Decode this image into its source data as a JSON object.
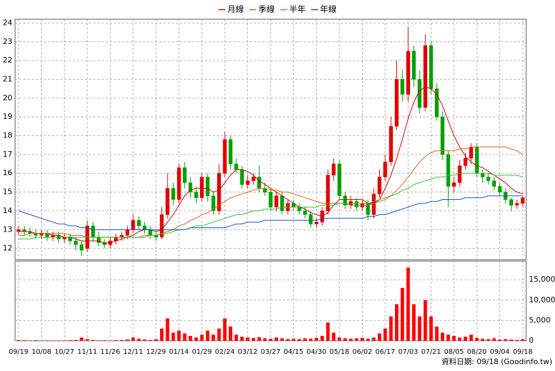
{
  "chart_data": {
    "type": "candlestick",
    "legend": "top",
    "grid": true,
    "up_color": "#e00000",
    "down_color": "#00a000",
    "volume_color": "#ff0000",
    "note": "資料日期: 09/18 (Goodinfo.tw)",
    "xlim": [
      -0.6,
      88.6
    ],
    "xticks": [
      {
        "value": 0,
        "label": "09/19"
      },
      {
        "value": 4,
        "label": "10/08"
      },
      {
        "value": 8,
        "label": "10/27"
      },
      {
        "value": 12,
        "label": "11/11"
      },
      {
        "value": 16,
        "label": "11/26"
      },
      {
        "value": 20,
        "label": "12/11"
      },
      {
        "value": 24,
        "label": "12/29"
      },
      {
        "value": 28,
        "label": "01/14"
      },
      {
        "value": 32,
        "label": "01/29"
      },
      {
        "value": 36,
        "label": "02/24"
      },
      {
        "value": 40,
        "label": "03/12"
      },
      {
        "value": 44,
        "label": "03/27"
      },
      {
        "value": 48,
        "label": "04/15"
      },
      {
        "value": 52,
        "label": "04/30"
      },
      {
        "value": 56,
        "label": "05/18"
      },
      {
        "value": 60,
        "label": "06/02"
      },
      {
        "value": 64,
        "label": "06/17"
      },
      {
        "value": 68,
        "label": "07/03"
      },
      {
        "value": 72,
        "label": "07/21"
      },
      {
        "value": 76,
        "label": "08/05"
      },
      {
        "value": 80,
        "label": "08/20"
      },
      {
        "value": 84,
        "label": "09/04"
      },
      {
        "value": 88,
        "label": "09/18"
      }
    ],
    "ylim": [
      11.4,
      24.2
    ],
    "yticks": [
      12,
      13,
      14,
      15,
      16,
      17,
      18,
      19,
      20,
      21,
      22,
      23,
      24
    ],
    "y2lim": [
      0,
      19600
    ],
    "y2ticks": [
      0,
      {
        "value": 5000,
        "label": "5,000"
      },
      {
        "value": 10000,
        "label": "10,000"
      },
      {
        "value": 15000,
        "label": "15,000"
      }
    ],
    "open": [
      12.9,
      13.0,
      12.9,
      12.8,
      12.7,
      12.8,
      12.6,
      12.7,
      12.5,
      12.6,
      12.4,
      12.2,
      12.0,
      13.2,
      12.6,
      12.3,
      12.2,
      12.4,
      12.6,
      12.7,
      13.0,
      13.5,
      13.2,
      13.0,
      12.7,
      12.6,
      13.8,
      15.2,
      14.6,
      16.3,
      15.5,
      15.0,
      14.7,
      15.8,
      14.8,
      14.0,
      16.0,
      17.8,
      16.5,
      16.2,
      15.4,
      15.6,
      15.8,
      15.2,
      15.0,
      14.2,
      14.8,
      14.0,
      14.4,
      14.2,
      14.0,
      13.8,
      13.3,
      13.4,
      14.0,
      15.9,
      16.5,
      14.8,
      14.3,
      14.5,
      14.2,
      14.4,
      13.8,
      14.9,
      15.8,
      16.6,
      18.5,
      21.0,
      20.2,
      22.5,
      21.0,
      19.5,
      22.8,
      20.5,
      19.0,
      17.0,
      15.3,
      15.5,
      16.4,
      16.8,
      17.4,
      16.0,
      15.8,
      15.6,
      15.3,
      15.0,
      14.6,
      14.3,
      14.4
    ],
    "high": [
      13.2,
      13.2,
      13.1,
      13.0,
      13.0,
      13.0,
      12.9,
      12.9,
      12.8,
      12.8,
      12.6,
      12.4,
      13.5,
      13.4,
      12.9,
      12.5,
      12.6,
      12.8,
      12.9,
      13.2,
      13.8,
      13.7,
      13.4,
      13.2,
      12.9,
      14.2,
      16.0,
      15.5,
      16.5,
      16.6,
      15.8,
      15.3,
      16.0,
      16.0,
      15.0,
      16.5,
      18.2,
      18.0,
      16.8,
      16.4,
      15.9,
      16.0,
      16.4,
      15.5,
      15.2,
      15.0,
      15.0,
      14.6,
      14.6,
      14.4,
      14.2,
      14.0,
      13.6,
      14.2,
      16.2,
      16.8,
      16.7,
      15.0,
      14.8,
      14.7,
      14.6,
      14.6,
      15.2,
      16.2,
      17.0,
      19.0,
      22.0,
      21.5,
      23.8,
      22.8,
      21.5,
      23.4,
      23.0,
      20.8,
      19.3,
      17.2,
      15.8,
      16.7,
      17.1,
      17.6,
      17.6,
      16.2,
      16.0,
      15.8,
      15.5,
      15.2,
      14.7,
      14.6,
      14.8
    ],
    "low": [
      12.7,
      12.7,
      12.6,
      12.5,
      12.5,
      12.4,
      12.4,
      12.3,
      12.3,
      12.2,
      11.9,
      11.6,
      11.8,
      12.4,
      12.1,
      12.0,
      12.0,
      12.2,
      12.4,
      12.5,
      12.8,
      13.0,
      12.8,
      12.5,
      12.4,
      12.5,
      13.6,
      14.3,
      14.4,
      15.2,
      14.7,
      14.4,
      14.5,
      14.5,
      13.8,
      13.8,
      15.8,
      16.2,
      16.0,
      15.2,
      15.2,
      15.4,
      15.0,
      14.8,
      14.0,
      14.0,
      13.8,
      13.8,
      14.0,
      13.8,
      13.6,
      13.1,
      13.1,
      13.2,
      13.8,
      15.6,
      14.6,
      14.1,
      14.1,
      14.0,
      14.0,
      13.5,
      13.6,
      14.7,
      15.6,
      16.4,
      18.3,
      19.8,
      19.8,
      20.6,
      19.2,
      19.3,
      20.2,
      18.8,
      16.7,
      14.2,
      15.0,
      15.3,
      16.2,
      16.5,
      15.8,
      15.5,
      15.4,
      15.1,
      14.8,
      14.4,
      14.0,
      14.1,
      14.2
    ],
    "close": [
      13.0,
      12.9,
      12.8,
      12.7,
      12.8,
      12.6,
      12.7,
      12.5,
      12.6,
      12.4,
      12.2,
      11.9,
      13.2,
      12.6,
      12.3,
      12.2,
      12.4,
      12.6,
      12.7,
      13.0,
      13.5,
      13.2,
      13.0,
      12.7,
      12.6,
      13.8,
      15.2,
      14.6,
      16.3,
      15.5,
      15.0,
      14.7,
      15.8,
      14.8,
      14.0,
      16.0,
      17.8,
      16.5,
      16.2,
      15.4,
      15.6,
      15.8,
      15.2,
      15.0,
      14.2,
      14.8,
      14.0,
      14.4,
      14.2,
      14.0,
      13.8,
      13.3,
      13.4,
      14.0,
      15.9,
      16.5,
      14.8,
      14.3,
      14.5,
      14.2,
      14.4,
      13.8,
      14.9,
      15.8,
      16.6,
      18.5,
      21.0,
      20.2,
      22.5,
      21.0,
      19.5,
      22.8,
      20.5,
      19.0,
      17.0,
      15.3,
      15.5,
      16.4,
      16.8,
      17.4,
      16.0,
      15.8,
      15.6,
      15.3,
      15.0,
      14.6,
      14.3,
      14.4,
      14.7
    ],
    "volume": [
      200,
      150,
      100,
      150,
      100,
      120,
      80,
      100,
      100,
      150,
      200,
      800,
      400,
      200,
      100,
      150,
      100,
      150,
      200,
      300,
      800,
      500,
      300,
      200,
      400,
      3000,
      5500,
      2000,
      2500,
      1800,
      1200,
      800,
      1500,
      2500,
      1500,
      3000,
      5500,
      3500,
      1500,
      1000,
      800,
      700,
      900,
      600,
      500,
      800,
      600,
      400,
      500,
      400,
      600,
      500,
      700,
      1200,
      4500,
      2000,
      800,
      600,
      500,
      600,
      700,
      500,
      800,
      1800,
      3000,
      6000,
      9000,
      13000,
      18000,
      9000,
      6000,
      10000,
      6000,
      3500,
      2000,
      1500,
      1200,
      800,
      1000,
      1500,
      700,
      500,
      400,
      600,
      300,
      400,
      300,
      200,
      400
    ],
    "series": [
      {
        "name": "月線",
        "color": "#d00000",
        "values": [
          12.9,
          12.9,
          12.9,
          12.8,
          12.8,
          12.8,
          12.7,
          12.7,
          12.6,
          12.6,
          12.5,
          12.4,
          12.4,
          12.4,
          12.4,
          12.3,
          12.3,
          12.4,
          12.5,
          12.6,
          12.7,
          12.9,
          13.0,
          13.0,
          12.9,
          13.0,
          13.4,
          13.8,
          14.3,
          14.8,
          15.1,
          15.2,
          15.2,
          15.2,
          15.0,
          15.1,
          15.5,
          15.9,
          16.2,
          16.2,
          16.1,
          15.9,
          15.6,
          15.4,
          15.2,
          15.0,
          14.8,
          14.6,
          14.4,
          14.2,
          14.1,
          13.9,
          13.8,
          13.7,
          13.9,
          14.3,
          14.6,
          14.6,
          14.6,
          14.6,
          14.6,
          14.4,
          14.4,
          14.6,
          15.2,
          15.9,
          16.8,
          17.8,
          18.9,
          19.8,
          20.4,
          20.6,
          20.5,
          20.2,
          19.6,
          18.8,
          18.0,
          17.4,
          16.9,
          16.6,
          16.4,
          16.3,
          16.1,
          15.9,
          15.7,
          15.5,
          15.2,
          15.0,
          14.9
        ]
      },
      {
        "name": "季線",
        "color": "#e06010",
        "values": [
          12.7,
          12.7,
          12.8,
          12.8,
          12.8,
          12.8,
          12.8,
          12.8,
          12.8,
          12.7,
          12.7,
          12.7,
          12.6,
          12.6,
          12.6,
          12.6,
          12.6,
          12.6,
          12.6,
          12.6,
          12.6,
          12.6,
          12.6,
          12.7,
          12.7,
          12.8,
          12.9,
          13.0,
          13.2,
          13.3,
          13.5,
          13.6,
          13.8,
          13.9,
          14.1,
          14.3,
          14.5,
          14.7,
          14.8,
          14.9,
          15.0,
          15.1,
          15.2,
          15.2,
          15.1,
          15.1,
          15.0,
          15.0,
          14.9,
          14.8,
          14.7,
          14.6,
          14.5,
          14.4,
          14.4,
          14.4,
          14.4,
          14.4,
          14.3,
          14.3,
          14.3,
          14.3,
          14.4,
          14.5,
          14.6,
          14.8,
          15.1,
          15.4,
          15.8,
          16.2,
          16.6,
          16.9,
          17.1,
          17.2,
          17.2,
          17.2,
          17.2,
          17.3,
          17.3,
          17.4,
          17.4,
          17.4,
          17.4,
          17.4,
          17.4,
          17.4,
          17.3,
          17.2,
          17.0
        ]
      },
      {
        "name": "半年",
        "color": "#30c030",
        "values": [
          12.5,
          12.5,
          12.5,
          12.6,
          12.6,
          12.6,
          12.6,
          12.6,
          12.6,
          12.6,
          12.6,
          12.6,
          12.6,
          12.6,
          12.6,
          12.6,
          12.6,
          12.6,
          12.6,
          12.6,
          12.6,
          12.6,
          12.7,
          12.7,
          12.7,
          12.8,
          12.8,
          12.9,
          13.0,
          13.0,
          13.1,
          13.2,
          13.2,
          13.3,
          13.4,
          13.5,
          13.6,
          13.7,
          13.8,
          13.8,
          13.9,
          14.0,
          14.0,
          14.1,
          14.1,
          14.1,
          14.2,
          14.2,
          14.2,
          14.2,
          14.2,
          14.2,
          14.2,
          14.3,
          14.3,
          14.3,
          14.4,
          14.4,
          14.4,
          14.4,
          14.4,
          14.4,
          14.5,
          14.6,
          14.7,
          14.8,
          14.9,
          15.1,
          15.2,
          15.4,
          15.5,
          15.6,
          15.7,
          15.8,
          15.8,
          15.9,
          15.9,
          16.0,
          16.0,
          16.0,
          16.0,
          16.0,
          16.0,
          15.9,
          15.9,
          15.9,
          15.9,
          15.9,
          15.8
        ]
      },
      {
        "name": "年線",
        "color": "#1050c0",
        "values": [
          14.0,
          13.9,
          13.8,
          13.7,
          13.6,
          13.5,
          13.4,
          13.3,
          13.3,
          13.2,
          13.2,
          13.1,
          13.1,
          13.0,
          13.0,
          13.0,
          13.0,
          13.0,
          13.0,
          13.0,
          13.0,
          13.0,
          13.0,
          13.0,
          13.0,
          13.0,
          13.0,
          13.0,
          13.0,
          13.0,
          13.1,
          13.1,
          13.1,
          13.1,
          13.1,
          13.1,
          13.1,
          13.2,
          13.3,
          13.3,
          13.4,
          13.4,
          13.4,
          13.5,
          13.5,
          13.5,
          13.5,
          13.5,
          13.5,
          13.5,
          13.5,
          13.5,
          13.5,
          13.6,
          13.6,
          13.6,
          13.6,
          13.6,
          13.6,
          13.6,
          13.6,
          13.7,
          13.7,
          13.8,
          13.8,
          13.9,
          14.0,
          14.1,
          14.2,
          14.3,
          14.4,
          14.4,
          14.5,
          14.5,
          14.6,
          14.6,
          14.6,
          14.6,
          14.7,
          14.7,
          14.7,
          14.7,
          14.8,
          14.8,
          14.8,
          14.8,
          14.8,
          14.8,
          14.8
        ]
      }
    ]
  }
}
